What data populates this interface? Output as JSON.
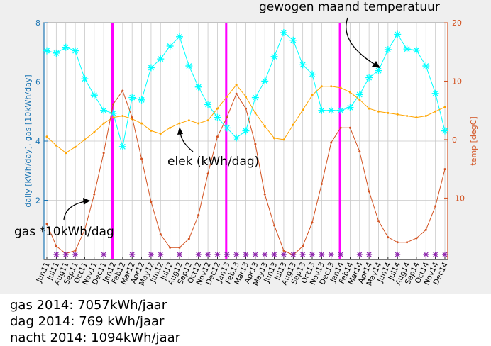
{
  "chart_data": {
    "type": "line",
    "annotations": {
      "top": "gewogen maand temperatuur",
      "elek": "elek (kWh/dag)",
      "gas": "gas *10kWh/dag"
    },
    "ylabel_left": "daily [kWh/day], gas [10kWh/day]",
    "ylabel_right": "temp [degC]",
    "ylim_left": [
      0,
      8
    ],
    "ylim_right": [
      -20.5,
      20
    ],
    "yticks_left": [
      "2",
      "4",
      "6",
      "8"
    ],
    "yticks_right": [
      "-10",
      "0",
      "10",
      "20"
    ],
    "categories": [
      "Jun11",
      "Jul11",
      "Aug11",
      "Sep11",
      "Oct11",
      "Nov11",
      "Dec11",
      "Jan12",
      "Feb12",
      "Mar12",
      "Apr12",
      "May12",
      "Jun12",
      "Jul12",
      "Aug12",
      "Sep12",
      "Oct12",
      "Nov12",
      "Dec12",
      "Jan13",
      "Feb13",
      "Mar13",
      "Apr13",
      "May13",
      "Jun13",
      "Jul13",
      "Aug13",
      "Sep13",
      "Oct13",
      "Nov13",
      "Dec13",
      "Jan14",
      "Feb14",
      "Mar14",
      "Apr14",
      "May14",
      "Jun14",
      "Jul14",
      "Aug14",
      "Sep14",
      "Oct14",
      "Nov14",
      "Dec14"
    ],
    "series": [
      {
        "name": "gewogen maand temperatuur",
        "axis": "right",
        "color": "#00ffff",
        "values": [
          15.2,
          14.8,
          15.8,
          15.2,
          10.4,
          7.6,
          5.0,
          4.5,
          -1.2,
          7.2,
          6.8,
          12.3,
          13.8,
          16.0,
          17.6,
          12.6,
          9.0,
          6.0,
          3.8,
          2.0,
          0.3,
          1.5,
          7.2,
          10.0,
          14.2,
          18.3,
          17.0,
          12.8,
          11.2,
          5.0,
          5.0,
          5.0,
          5.5,
          7.7,
          10.6,
          11.8,
          15.4,
          18.0,
          15.5,
          15.3,
          12.6,
          7.9,
          1.5
        ]
      },
      {
        "name": "elek (kWh/dag)",
        "axis": "left",
        "color": "#ffa500",
        "values": [
          4.15,
          3.85,
          3.6,
          3.8,
          4.05,
          4.3,
          4.6,
          4.8,
          4.85,
          4.75,
          4.6,
          4.35,
          4.25,
          4.45,
          4.6,
          4.7,
          4.6,
          4.7,
          5.1,
          5.5,
          5.9,
          5.5,
          4.95,
          4.5,
          4.1,
          4.05,
          4.55,
          5.05,
          5.55,
          5.85,
          5.85,
          5.8,
          5.65,
          5.4,
          5.1,
          5.0,
          4.95,
          4.9,
          4.85,
          4.8,
          4.85,
          5.0,
          5.15
        ]
      },
      {
        "name": "gas *10kWh/dag",
        "axis": "left",
        "color": "#d2501e",
        "values": [
          1.2,
          0.45,
          0.2,
          0.3,
          1.0,
          2.2,
          3.6,
          5.25,
          5.7,
          4.8,
          3.4,
          1.95,
          0.85,
          0.4,
          0.4,
          0.7,
          1.5,
          2.9,
          4.15,
          4.8,
          5.6,
          5.1,
          3.9,
          2.2,
          1.15,
          0.3,
          0.15,
          0.45,
          1.25,
          2.55,
          3.95,
          4.45,
          4.45,
          3.65,
          2.3,
          1.3,
          0.75,
          0.58,
          0.58,
          0.72,
          1.0,
          1.8,
          3.05
        ]
      }
    ],
    "vertical_markers": [
      "Jan12",
      "Jan13",
      "Jan14"
    ],
    "purple_markers": [
      "Jul11",
      "Aug11",
      "Sep11",
      "Dec11",
      "Mar12",
      "May12",
      "Jun12",
      "Aug12",
      "Oct12",
      "Nov12",
      "Dec12",
      "Jan13",
      "Feb13",
      "Mar13",
      "Apr13",
      "May13",
      "Jun13",
      "Jul13",
      "Aug13",
      "Sep13",
      "Oct13",
      "Nov13",
      "Dec13",
      "Jan14",
      "Mar14",
      "Apr14",
      "Jul14",
      "Oct14",
      "Nov14",
      "Dec14"
    ]
  },
  "summary": {
    "gas": "gas 2014: 7057kWh/jaar",
    "dag": "dag 2014: 769 kWh/jaar",
    "nacht": "nacht 2014: 1094kWh/jaar"
  }
}
